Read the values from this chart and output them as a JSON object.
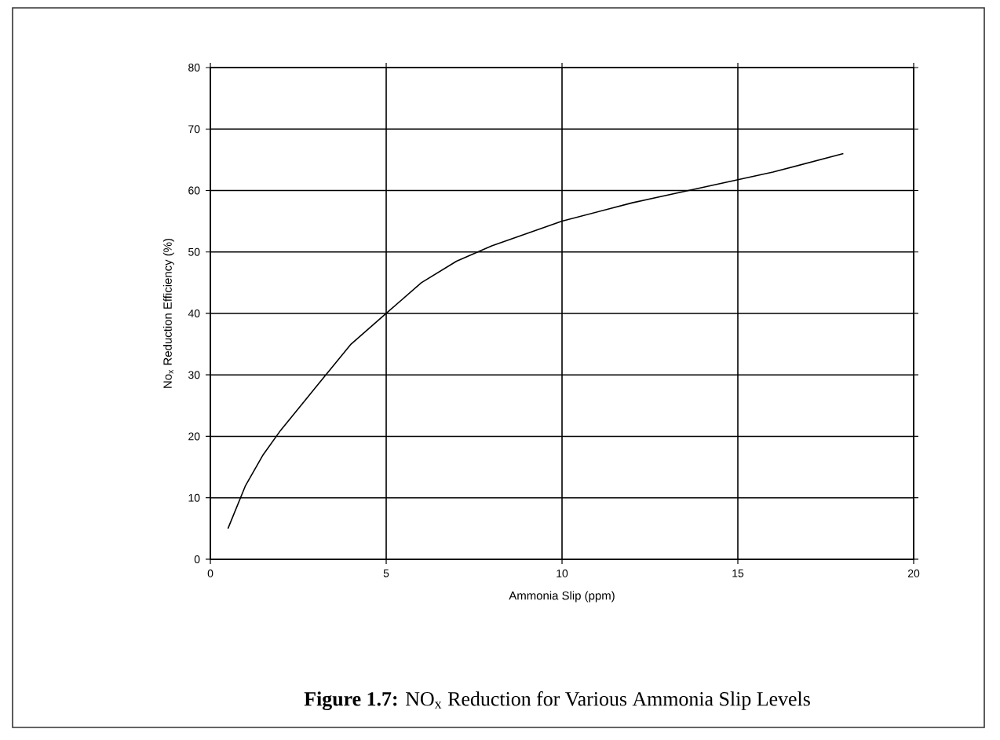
{
  "chart_data": {
    "type": "line",
    "xlabel": "Ammonia Slip (ppm)",
    "ylabel": "No$_{x}$ Reduction Efficiency (%)",
    "annotations": [
      "**Figure 1.7:** NO$_{x}$ Reduction for Various Ammonia Slip Levels"
    ],
    "series": [
      {
        "color": "#000000",
        "x": [
          0.5,
          1,
          1.5,
          2,
          3,
          4,
          5,
          6,
          7,
          8,
          10,
          12,
          14,
          16,
          18
        ],
        "values": [
          5,
          12,
          17,
          21,
          28,
          35,
          40,
          45,
          48.5,
          51,
          55,
          58,
          60.5,
          63,
          66
        ]
      }
    ],
    "xlim": [
      0,
      20
    ],
    "ylim": [
      0,
      80
    ],
    "xticks": [
      0,
      5,
      10,
      15,
      20
    ],
    "yticks": [
      0,
      10,
      20,
      30,
      40,
      50,
      60,
      70,
      80
    ],
    "grid": true,
    "marker": "none",
    "line_style": "solid"
  }
}
